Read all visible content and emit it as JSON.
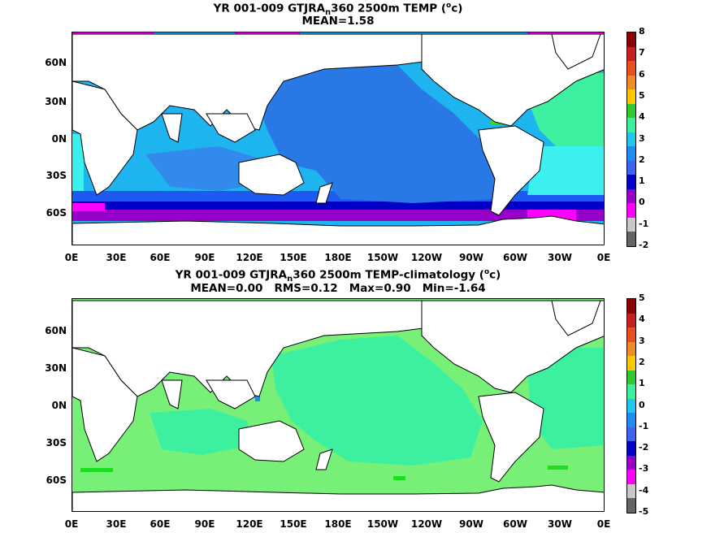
{
  "panels": [
    {
      "title_line1": "YR 001-009 GTJRA",
      "title_sub": "n",
      "title_rest": "360 2500m TEMP (",
      "title_sup": "o",
      "title_unit": "c)",
      "stats": "MEAN=1.58",
      "colorbar_labels": [
        "8",
        "7",
        "6",
        "5",
        "4",
        "3",
        "2",
        "1",
        "0",
        "-1",
        "-2"
      ],
      "colorbar_colors": [
        "#8b0000",
        "#c81e1e",
        "#e8501e",
        "#f08c28",
        "#ffc800",
        "#32c832",
        "#3cf0a0",
        "#1ec8f0",
        "#1e8cf0",
        "#3c64f0",
        "#0000c8",
        "#9600c8",
        "#ff00ff",
        "#c8c8c8",
        "#646464"
      ]
    },
    {
      "title_line1": "YR 001-009 GTJRA",
      "title_sub": "n",
      "title_rest": "360 2500m TEMP-climatology (",
      "title_sup": "o",
      "title_unit": "c)",
      "stats": "MEAN=0.00   RMS=0.12   Max=0.90   Min=-1.64",
      "colorbar_labels": [
        "5",
        "4",
        "3",
        "2",
        "1",
        "0",
        "-1",
        "-2",
        "-3",
        "-4",
        "-5"
      ],
      "colorbar_colors": [
        "#8b0000",
        "#c81e1e",
        "#e8501e",
        "#f08c28",
        "#ffc800",
        "#32c832",
        "#3cf0a0",
        "#1ec8f0",
        "#1e8cf0",
        "#3c64f0",
        "#0000c8",
        "#9600c8",
        "#ff00ff",
        "#c8c8c8",
        "#646464"
      ]
    }
  ],
  "latitude_labels": [
    "60N",
    "30N",
    "0N",
    "30S",
    "60S"
  ],
  "longitude_labels": [
    "0E",
    "30E",
    "60E",
    "90E",
    "120E",
    "150E",
    "180E",
    "150W",
    "120W",
    "90W",
    "60W",
    "30W",
    "0E"
  ],
  "fill_colors": {
    "deep_pacific": "#2878e6",
    "light_blue": "#1eb4f0",
    "cyan": "#3cf0f0",
    "aqua": "#3cf0a0",
    "green": "#32dc32",
    "blue_band": "#1e5af0",
    "navy_band": "#0000c8",
    "purple": "#9600c8",
    "magenta": "#ff00ff",
    "grey": "#c8c8c8",
    "land": "#ffffff",
    "anomaly_green": "#78f078",
    "anomaly_bright": "#1edc1e"
  }
}
